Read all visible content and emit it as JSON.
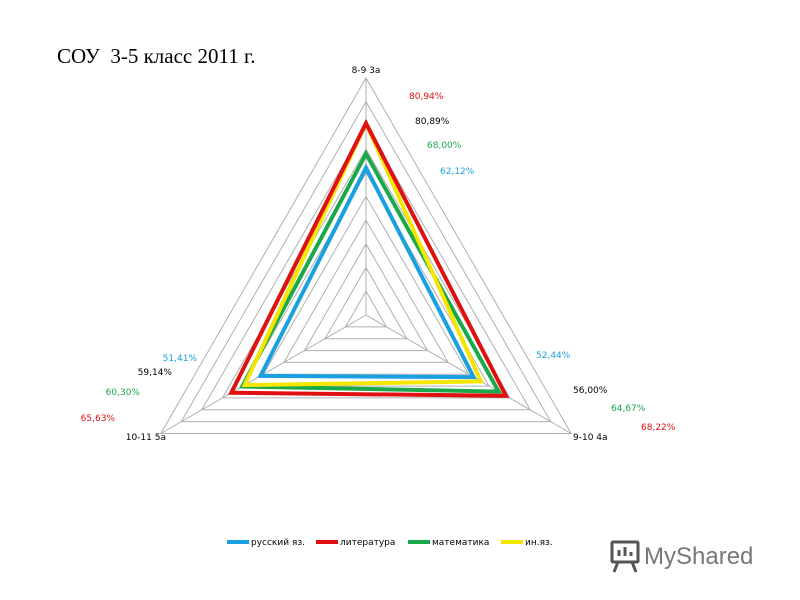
{
  "page": {
    "title": "СОУ  3-5 класс 2011 г.",
    "logo_text": "MyShared"
  },
  "chart_data": {
    "type": "radar",
    "categories": [
      "8-9 3а",
      "9-10 4а",
      "10-11 5а"
    ],
    "rmax": 100,
    "rings": 10,
    "legend_position": "bottom",
    "series": [
      {
        "name": "русский яз.",
        "color": "#1aa0e0",
        "values": [
          62.12,
          52.44,
          51.41
        ],
        "labels": [
          "62,12%",
          "52,44%",
          "51,41%"
        ]
      },
      {
        "name": "литература",
        "color": "#e01010",
        "values": [
          80.94,
          68.22,
          65.63
        ],
        "labels": [
          "80,94%",
          "68,22%",
          "65,63%"
        ]
      },
      {
        "name": "математика",
        "color": "#1aa84a",
        "values": [
          68.0,
          64.67,
          60.3
        ],
        "labels": [
          "68,00%",
          "64,67%",
          "60,30%"
        ]
      },
      {
        "name": "ин.яз.",
        "color": "#f5e600",
        "values": [
          80.89,
          56.0,
          59.14
        ],
        "labels": [
          "80,89%",
          "56,00%",
          "59,14%"
        ],
        "label_color": "#000000"
      }
    ]
  }
}
